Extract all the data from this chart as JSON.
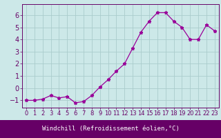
{
  "x": [
    0,
    1,
    2,
    3,
    4,
    5,
    6,
    7,
    8,
    9,
    10,
    11,
    12,
    13,
    14,
    15,
    16,
    17,
    18,
    19,
    20,
    21,
    22,
    23
  ],
  "y": [
    -1,
    -1,
    -0.9,
    -0.6,
    -0.8,
    -0.7,
    -1.2,
    -1.1,
    -0.6,
    0.1,
    0.7,
    1.4,
    2.0,
    3.3,
    4.6,
    5.5,
    6.2,
    6.2,
    5.5,
    5.0,
    4.0,
    4.0,
    5.2,
    4.7
  ],
  "line_color": "#990099",
  "marker": "*",
  "bg_color": "#cce8e8",
  "grid_color": "#aacccc",
  "xlim": [
    -0.5,
    23.5
  ],
  "ylim": [
    -1.6,
    6.9
  ],
  "yticks": [
    -1,
    0,
    1,
    2,
    3,
    4,
    5,
    6
  ],
  "xticks": [
    0,
    1,
    2,
    3,
    4,
    5,
    6,
    7,
    8,
    9,
    10,
    11,
    12,
    13,
    14,
    15,
    16,
    17,
    18,
    19,
    20,
    21,
    22,
    23
  ],
  "xlabel": "Windchill (Refroidissement éolien,°C)",
  "tick_fontsize": 6,
  "ytick_fontsize": 7,
  "label_color": "#660066",
  "xlabel_bg": "#660066",
  "xlabel_text_color": "#ffffff",
  "xlabel_fontsize": 6.5
}
